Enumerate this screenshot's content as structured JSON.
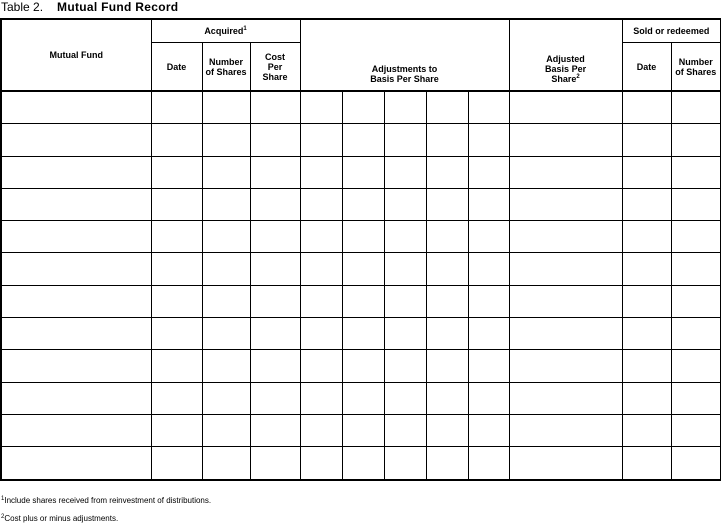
{
  "title": {
    "number": "Table 2.",
    "name": "Mutual Fund Record"
  },
  "headers": {
    "mutual_fund": "Mutual Fund",
    "acquired": "Acquired",
    "acquired_note": "1",
    "acquired_date": "Date",
    "acquired_shares": "Number of Shares",
    "cost_per_share": "Cost Per Share",
    "adjustments": "Adjustments to Basis Per Share",
    "adjusted_basis": "Adjusted Basis Per Share",
    "adjusted_note": "2",
    "sold": "Sold or redeemed",
    "sold_date": "Date",
    "sold_shares": "Number of Shares"
  },
  "row_count": 12,
  "footnotes": [
    {
      "mark": "1",
      "text": "Include shares received from reinvestment of distributions."
    },
    {
      "mark": "2",
      "text": "Cost plus or minus adjustments."
    }
  ]
}
